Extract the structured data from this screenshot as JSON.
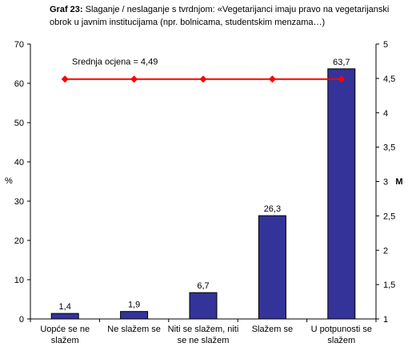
{
  "chart_data": {
    "type": "bar",
    "title_prefix": "Graf 23:",
    "title": "Slaganje / neslaganje s tvrdnjom: «Vegetarijanci imaju pravo na vegetarijanski obrok u javnim institucijama (npr. bolnicama, studentskim menzama…)",
    "categories": [
      [
        "Uopće se ne",
        "slažem"
      ],
      [
        "Ne slažem se"
      ],
      [
        "Niti se slažem, niti",
        "se ne slažem"
      ],
      [
        "Slažem se"
      ],
      [
        "U potpunosti se",
        "slažem"
      ]
    ],
    "values": [
      1.4,
      1.9,
      6.7,
      26.3,
      63.7
    ],
    "value_labels": [
      "1,4",
      "1,9",
      "6,7",
      "26,3",
      "63,7"
    ],
    "ylabel_left": "%",
    "ylim_left": [
      0,
      70
    ],
    "yticks_left": [
      "0",
      "10",
      "20",
      "30",
      "40",
      "50",
      "60",
      "70"
    ],
    "ylabel_right": "M",
    "ylim_right": [
      1,
      5
    ],
    "yticks_right": [
      "1",
      "1,5",
      "2",
      "2,5",
      "3",
      "3,5",
      "4",
      "4,5",
      "5"
    ],
    "mean_value": 4.49,
    "mean_label": "Srednja ocjena = 4,49",
    "colors": {
      "bar": "#333399",
      "mean_line": "#ff0000"
    },
    "grid": false
  }
}
